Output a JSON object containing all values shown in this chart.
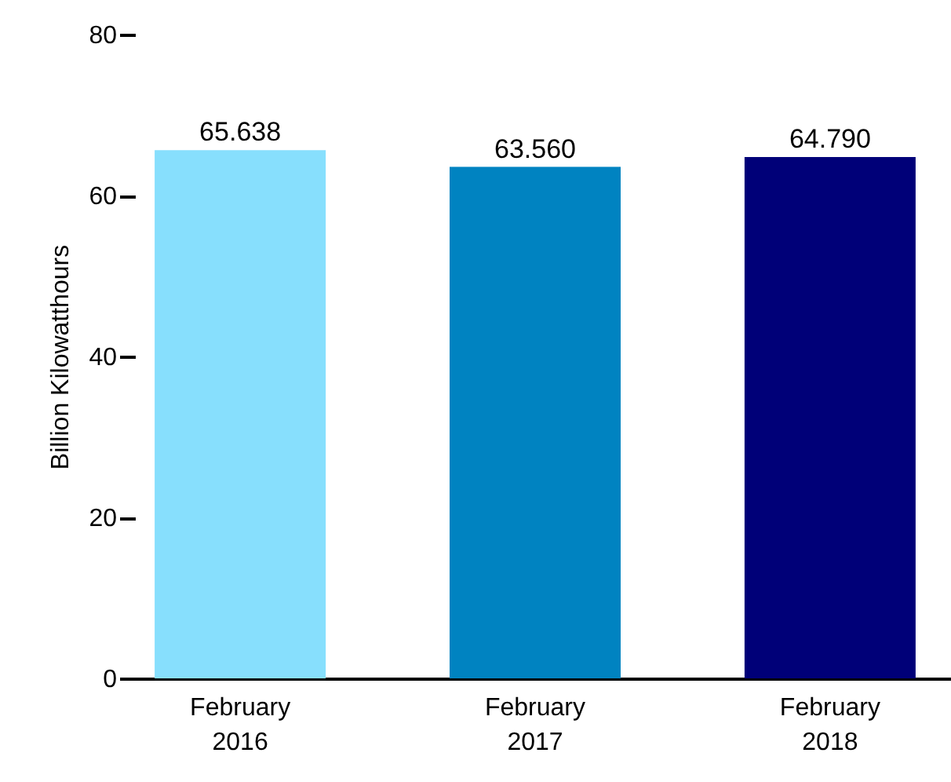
{
  "chart_data": {
    "type": "bar",
    "ylabel": "Billion Kilowatthours",
    "categories": [
      "February 2016",
      "February 2017",
      "February 2018"
    ],
    "values": [
      65.638,
      63.56,
      64.79
    ],
    "value_labels": [
      "65.638",
      "63.560",
      "64.790"
    ],
    "colors": [
      "#87dffd",
      "#0083c1",
      "#000078"
    ],
    "ylim": [
      0,
      80
    ],
    "yticks": [
      0,
      20,
      40,
      60,
      80
    ],
    "grid": false
  }
}
